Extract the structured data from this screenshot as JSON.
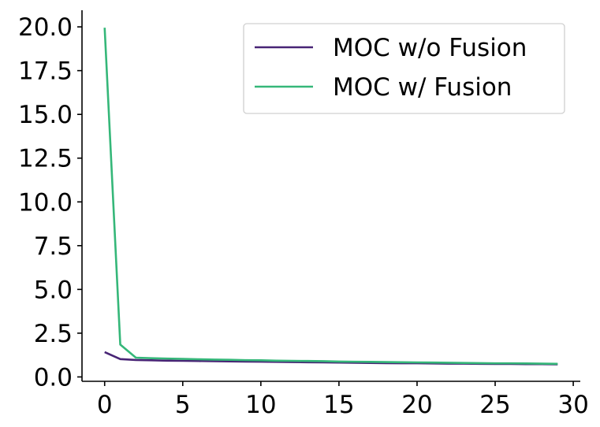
{
  "chart_data": {
    "type": "line",
    "title": "",
    "xlabel": "",
    "ylabel": "",
    "xlim": [
      -1.45,
      30.45
    ],
    "ylim": [
      -0.25,
      20.95
    ],
    "xticks": [
      0,
      5,
      10,
      15,
      20,
      25,
      30
    ],
    "xtick_labels": [
      "0",
      "5",
      "10",
      "15",
      "20",
      "25",
      "30"
    ],
    "yticks": [
      0.0,
      2.5,
      5.0,
      7.5,
      10.0,
      12.5,
      15.0,
      17.5,
      20.0
    ],
    "ytick_labels": [
      "0.0",
      "2.5",
      "5.0",
      "7.5",
      "10.0",
      "12.5",
      "15.0",
      "17.5",
      "20.0"
    ],
    "grid": false,
    "legend_position": "top-right",
    "x": [
      0,
      1,
      2,
      3,
      4,
      5,
      6,
      7,
      8,
      9,
      10,
      11,
      12,
      13,
      14,
      15,
      16,
      17,
      18,
      19,
      20,
      21,
      22,
      23,
      24,
      25,
      26,
      27,
      28,
      29
    ],
    "series": [
      {
        "name": "MOC w/o Fusion",
        "color": "#482475",
        "values": [
          1.42,
          1.02,
          0.97,
          0.95,
          0.93,
          0.92,
          0.91,
          0.9,
          0.89,
          0.88,
          0.87,
          0.86,
          0.85,
          0.84,
          0.83,
          0.82,
          0.81,
          0.8,
          0.79,
          0.78,
          0.78,
          0.77,
          0.76,
          0.76,
          0.75,
          0.74,
          0.74,
          0.73,
          0.73,
          0.72
        ]
      },
      {
        "name": "MOC w/ Fusion",
        "color": "#35b779",
        "values": [
          19.95,
          1.85,
          1.1,
          1.07,
          1.05,
          1.03,
          1.01,
          0.99,
          0.98,
          0.96,
          0.95,
          0.93,
          0.92,
          0.91,
          0.9,
          0.88,
          0.87,
          0.86,
          0.85,
          0.84,
          0.83,
          0.82,
          0.81,
          0.8,
          0.79,
          0.78,
          0.78,
          0.77,
          0.76,
          0.75
        ]
      }
    ]
  }
}
